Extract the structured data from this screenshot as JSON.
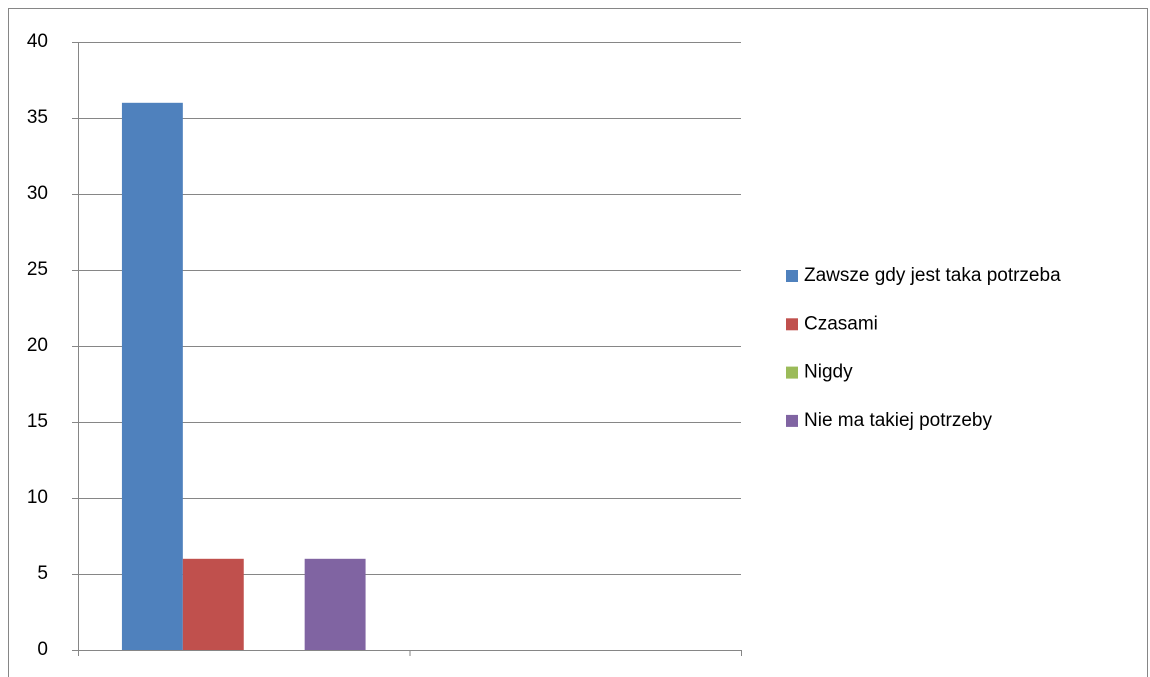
{
  "chart_data": {
    "type": "bar",
    "categories": [
      null,
      null
    ],
    "series": [
      {
        "name": "Zawsze gdy jest taka potrzeba",
        "color": "#4f81bd",
        "values": [
          36,
          null
        ]
      },
      {
        "name": "Czasami",
        "color": "#c0504d",
        "values": [
          6,
          null
        ]
      },
      {
        "name": "Nigdy",
        "color": "#9bbb59",
        "values": [
          0,
          null
        ]
      },
      {
        "name": "Nie ma takiej potrzeby",
        "color": "#8064a2",
        "values": [
          6,
          null
        ]
      }
    ],
    "ylim": [
      0,
      40
    ],
    "yticks": [
      0,
      5,
      10,
      15,
      20,
      25,
      30,
      35,
      40
    ],
    "grid": true,
    "legend": "right"
  }
}
